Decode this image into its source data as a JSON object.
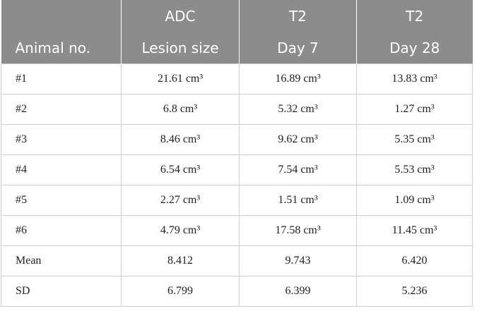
{
  "header": {
    "row1": [
      "ADC",
      "T2",
      "T2"
    ],
    "row2": [
      "Animal no.",
      "Lesion size",
      "Day 7",
      "Day 28"
    ]
  },
  "table": {
    "rows": [
      [
        "#1",
        "21.61 cm³",
        "16.89 cm³",
        "13.83 cm³"
      ],
      [
        "#2",
        "6.8 cm³",
        "5.32 cm³",
        "1.27 cm³"
      ],
      [
        "#3",
        "8.46 cm³",
        "9.62 cm³",
        "5.35 cm³"
      ],
      [
        "#4",
        "6.54 cm³",
        "7.54 cm³",
        "5.53 cm³"
      ],
      [
        "#5",
        "2.27 cm³",
        "1.51 cm³",
        "1.09 cm³"
      ],
      [
        "#6",
        "4.79 cm³",
        "17.58 cm³",
        "11.45 cm³"
      ],
      [
        "Mean",
        "8.412",
        "9.743",
        "6.420"
      ],
      [
        "SD",
        "6.799",
        "6.399",
        "5.236"
      ]
    ]
  }
}
